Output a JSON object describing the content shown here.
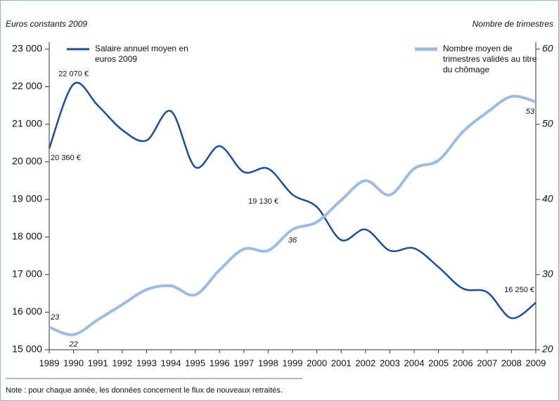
{
  "chart_data": {
    "type": "line",
    "y_label": "Euros constants 2009",
    "y2_label": "Nombre de trimestres",
    "note": "Note : pour chaque année, les données concernent le flux de nouveaux retraités.",
    "x": [
      1989,
      1990,
      1991,
      1992,
      1993,
      1994,
      1995,
      1996,
      1997,
      1998,
      1999,
      2000,
      2001,
      2002,
      2003,
      2004,
      2005,
      2006,
      2007,
      2008,
      2009
    ],
    "xlim": [
      1989,
      2009
    ],
    "ylim": [
      15000,
      23000
    ],
    "yticks": [
      {
        "value": 15000,
        "label": "15 000"
      },
      {
        "value": 16000,
        "label": "16 000"
      },
      {
        "value": 17000,
        "label": "17 000"
      },
      {
        "value": 18000,
        "label": "18 000"
      },
      {
        "value": 19000,
        "label": "19 000"
      },
      {
        "value": 20000,
        "label": "20 000"
      },
      {
        "value": 21000,
        "label": "21 000"
      },
      {
        "value": 22000,
        "label": "22 000"
      },
      {
        "value": 23000,
        "label": "23 000"
      }
    ],
    "y2lim": [
      20,
      60
    ],
    "y2ticks": [
      20,
      30,
      40,
      50,
      60
    ],
    "legend": "top",
    "series": [
      {
        "name": "Salaire annuel moyen en euros 2009",
        "color": "#1b4f93",
        "values": [
          20360,
          22070,
          21500,
          20850,
          20570,
          21350,
          19860,
          20420,
          19730,
          19820,
          19130,
          18800,
          17920,
          18200,
          17640,
          17700,
          17200,
          16630,
          16530,
          15840,
          16250
        ],
        "value_labels": [
          "20 360 €",
          "22 070 €",
          null,
          null,
          null,
          null,
          null,
          null,
          null,
          null,
          "19 130 €",
          null,
          null,
          null,
          null,
          null,
          null,
          null,
          null,
          null,
          "16 250 €"
        ]
      },
      {
        "name": "Nombre moyen de trimestres validés au titre du chômage",
        "color": "#9dbde0",
        "axis": "y2",
        "values": [
          23,
          22,
          24,
          26,
          28,
          28.5,
          27.3,
          30.6,
          33.4,
          33.2,
          36,
          37,
          39.9,
          42.5,
          40.6,
          44.1,
          45.2,
          49,
          51.6,
          53.7,
          53
        ],
        "value_labels": [
          "23",
          "22",
          null,
          null,
          null,
          null,
          null,
          null,
          null,
          null,
          "36",
          null,
          null,
          null,
          null,
          null,
          null,
          null,
          null,
          null,
          "53"
        ]
      }
    ]
  }
}
